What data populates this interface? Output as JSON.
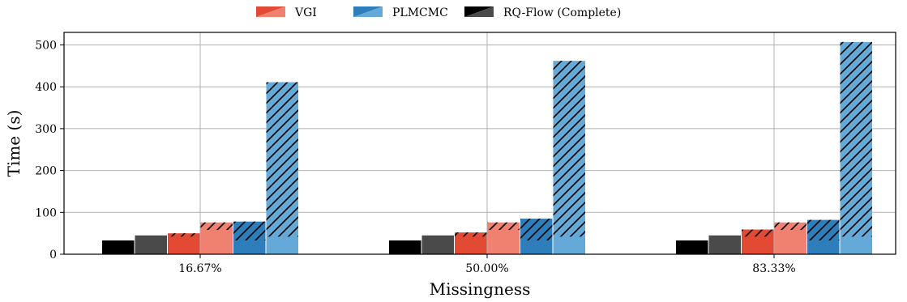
{
  "chart_data": {
    "type": "bar",
    "xlabel": "Missingness",
    "ylabel": "Time (s)",
    "categories": [
      "16.67%",
      "50.00%",
      "83.33%"
    ],
    "ylim": [
      0,
      530
    ],
    "yticks": [
      0,
      100,
      200,
      300,
      400,
      500
    ],
    "grid": true,
    "legend": {
      "placement": "top-center",
      "entries": [
        {
          "label": "VGI",
          "colors": [
            "#e34a33",
            "#f08070"
          ]
        },
        {
          "label": "PLMCMC",
          "colors": [
            "#2e7ebc",
            "#64a9d7"
          ]
        },
        {
          "label": "RQ-Flow (Complete)",
          "colors": [
            "#000000",
            "#4a4a4a"
          ]
        }
      ]
    },
    "hatch_note_values": "Each method has a dark and a light shade; bars drawn as a base (solid) with a hatched top segment.",
    "bars": [
      {
        "series": "RQ-Flow (Complete)",
        "shade": "dark",
        "color": "#000000",
        "values": [
          33,
          33,
          33
        ],
        "hatched_from": [
          null,
          null,
          null
        ]
      },
      {
        "series": "RQ-Flow (Complete)",
        "shade": "light",
        "color": "#4a4a4a",
        "values": [
          45,
          45,
          45
        ],
        "hatched_from": [
          null,
          null,
          null
        ]
      },
      {
        "series": "VGI",
        "shade": "dark",
        "color": "#e34a33",
        "values": [
          50,
          52,
          59
        ],
        "hatched_from": [
          42,
          42,
          42
        ]
      },
      {
        "series": "VGI",
        "shade": "light",
        "color": "#f08070",
        "values": [
          76,
          76,
          76
        ],
        "hatched_from": [
          58,
          58,
          58
        ]
      },
      {
        "series": "PLMCMC",
        "shade": "dark",
        "color": "#2e7ebc",
        "values": [
          78,
          85,
          82
        ],
        "hatched_from": [
          33,
          33,
          33
        ]
      },
      {
        "series": "PLMCMC",
        "shade": "light",
        "color": "#64a9d7",
        "values": [
          411,
          462,
          507
        ],
        "hatched_from": [
          42,
          42,
          42
        ]
      }
    ]
  }
}
